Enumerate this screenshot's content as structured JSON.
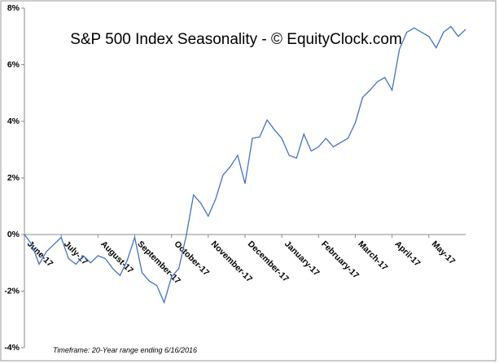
{
  "chart_data": {
    "type": "line",
    "title": "S&P 500 Index Seasonality - © EquityClock.com",
    "footnote": "Timeframe: 20-Year range ending 6/16/2016",
    "x": [
      0,
      0.2,
      0.4,
      0.6,
      0.8,
      1,
      1.2,
      1.4,
      1.6,
      1.8,
      2,
      2.2,
      2.4,
      2.6,
      2.8,
      3,
      3.2,
      3.4,
      3.6,
      3.8,
      4,
      4.2,
      4.4,
      4.6,
      4.8,
      5,
      5.2,
      5.4,
      5.6,
      5.8,
      6,
      6.2,
      6.4,
      6.6,
      6.8,
      7,
      7.2,
      7.4,
      7.6,
      7.8,
      8,
      8.2,
      8.4,
      8.6,
      8.8,
      9,
      9.2,
      9.4,
      9.6,
      9.8,
      10,
      10.2,
      10.4,
      10.6,
      10.8,
      11,
      11.2,
      11.4,
      11.6,
      11.8,
      12
    ],
    "series": [
      {
        "name": "S&P 500",
        "color": "#4472c4",
        "values": [
          0,
          -0.35,
          -1.05,
          -0.6,
          -0.35,
          -0.1,
          -0.85,
          -1.05,
          -0.75,
          -1.0,
          -0.75,
          -0.85,
          -1.2,
          -1.45,
          -0.9,
          -0.1,
          -1.35,
          -1.65,
          -1.8,
          -2.4,
          -1.5,
          -1.2,
          -0.05,
          1.4,
          1.1,
          0.65,
          1.25,
          2.1,
          2.4,
          2.8,
          1.8,
          3.4,
          3.45,
          4.05,
          3.7,
          3.4,
          2.8,
          2.7,
          3.55,
          2.95,
          3.1,
          3.4,
          3.1,
          3.25,
          3.4,
          3.95,
          4.85,
          5.1,
          5.4,
          5.55,
          5.1,
          6.55,
          7.15,
          7.3,
          7.15,
          7.0,
          6.6,
          7.15,
          7.35,
          7.0,
          7.25
        ]
      }
    ],
    "xlim": [
      0,
      12
    ],
    "xticks": [
      {
        "value": 0,
        "label": "June-17"
      },
      {
        "value": 1,
        "label": "July-17"
      },
      {
        "value": 2,
        "label": "August-17"
      },
      {
        "value": 3,
        "label": "September-17"
      },
      {
        "value": 4,
        "label": "October-17"
      },
      {
        "value": 5,
        "label": "November-17"
      },
      {
        "value": 6,
        "label": "December-17"
      },
      {
        "value": 7,
        "label": "January-17"
      },
      {
        "value": 8,
        "label": "February-17"
      },
      {
        "value": 9,
        "label": "March-17"
      },
      {
        "value": 10,
        "label": "April-17"
      },
      {
        "value": 11,
        "label": "May-17"
      }
    ],
    "ylim": [
      -4,
      8
    ],
    "yticks": [
      {
        "value": -4,
        "label": "-4%"
      },
      {
        "value": -2,
        "label": "-2%"
      },
      {
        "value": 0,
        "label": "0%"
      },
      {
        "value": 2,
        "label": "2%"
      },
      {
        "value": 4,
        "label": "4%"
      },
      {
        "value": 6,
        "label": "6%"
      },
      {
        "value": 8,
        "label": "8%"
      }
    ]
  }
}
